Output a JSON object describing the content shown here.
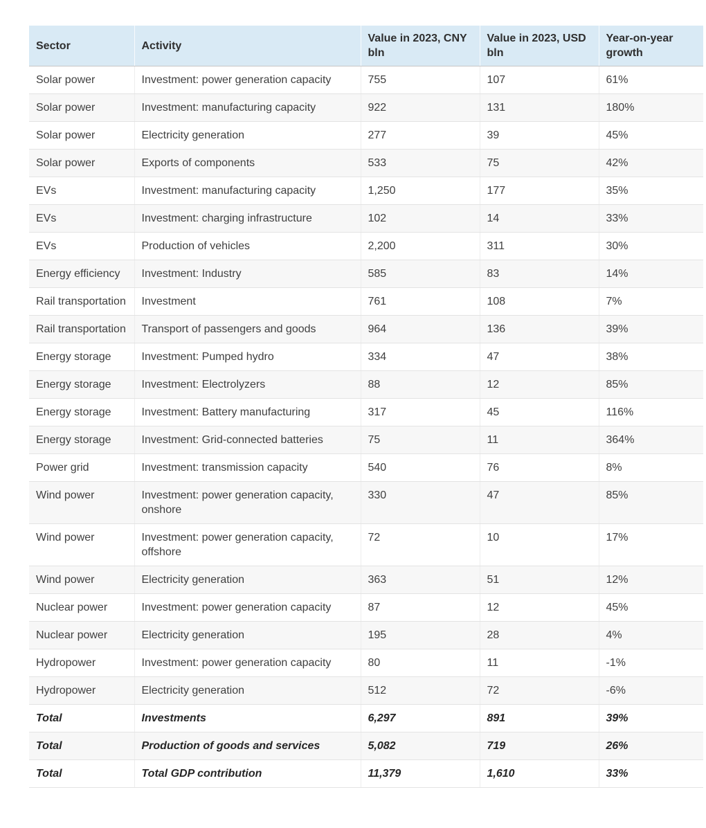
{
  "chart_data": {
    "type": "table",
    "columns": [
      "Sector",
      "Activity",
      "Value in 2023, CNY bln",
      "Value in 2023, USD bln",
      "Year-on-year growth"
    ],
    "rows": [
      {
        "sector": "Solar power",
        "activity": "Investment: power generation capacity",
        "value_cny_bln": "755",
        "value_usd_bln": "107",
        "yoy_growth": "61%",
        "is_total": false
      },
      {
        "sector": "Solar power",
        "activity": "Investment: manufacturing capacity",
        "value_cny_bln": "922",
        "value_usd_bln": "131",
        "yoy_growth": "180%",
        "is_total": false
      },
      {
        "sector": "Solar power",
        "activity": "Electricity generation",
        "value_cny_bln": "277",
        "value_usd_bln": "39",
        "yoy_growth": "45%",
        "is_total": false
      },
      {
        "sector": "Solar power",
        "activity": "Exports of components",
        "value_cny_bln": "533",
        "value_usd_bln": "75",
        "yoy_growth": "42%",
        "is_total": false
      },
      {
        "sector": "EVs",
        "activity": "Investment: manufacturing capacity",
        "value_cny_bln": "1,250",
        "value_usd_bln": "177",
        "yoy_growth": "35%",
        "is_total": false
      },
      {
        "sector": "EVs",
        "activity": "Investment: charging infrastructure",
        "value_cny_bln": "102",
        "value_usd_bln": "14",
        "yoy_growth": "33%",
        "is_total": false
      },
      {
        "sector": "EVs",
        "activity": "Production of vehicles",
        "value_cny_bln": "2,200",
        "value_usd_bln": "311",
        "yoy_growth": "30%",
        "is_total": false
      },
      {
        "sector": "Energy efficiency",
        "activity": "Investment: Industry",
        "value_cny_bln": "585",
        "value_usd_bln": "83",
        "yoy_growth": "14%",
        "is_total": false
      },
      {
        "sector": "Rail transportation",
        "activity": "Investment",
        "value_cny_bln": "761",
        "value_usd_bln": "108",
        "yoy_growth": "7%",
        "is_total": false
      },
      {
        "sector": "Rail transportation",
        "activity": "Transport of passengers and goods",
        "value_cny_bln": "964",
        "value_usd_bln": "136",
        "yoy_growth": "39%",
        "is_total": false
      },
      {
        "sector": "Energy storage",
        "activity": "Investment: Pumped hydro",
        "value_cny_bln": "334",
        "value_usd_bln": "47",
        "yoy_growth": "38%",
        "is_total": false
      },
      {
        "sector": "Energy storage",
        "activity": "Investment: Electrolyzers",
        "value_cny_bln": "88",
        "value_usd_bln": "12",
        "yoy_growth": "85%",
        "is_total": false
      },
      {
        "sector": "Energy storage",
        "activity": "Investment: Battery manufacturing",
        "value_cny_bln": "317",
        "value_usd_bln": "45",
        "yoy_growth": "116%",
        "is_total": false
      },
      {
        "sector": "Energy storage",
        "activity": "Investment: Grid-connected batteries",
        "value_cny_bln": "75",
        "value_usd_bln": "11",
        "yoy_growth": "364%",
        "is_total": false
      },
      {
        "sector": "Power grid",
        "activity": "Investment: transmission capacity",
        "value_cny_bln": "540",
        "value_usd_bln": "76",
        "yoy_growth": "8%",
        "is_total": false
      },
      {
        "sector": "Wind power",
        "activity": "Investment: power generation capacity, onshore",
        "value_cny_bln": "330",
        "value_usd_bln": "47",
        "yoy_growth": "85%",
        "is_total": false
      },
      {
        "sector": "Wind power",
        "activity": "Investment: power generation capacity, offshore",
        "value_cny_bln": "72",
        "value_usd_bln": "10",
        "yoy_growth": "17%",
        "is_total": false
      },
      {
        "sector": "Wind power",
        "activity": "Electricity generation",
        "value_cny_bln": "363",
        "value_usd_bln": "51",
        "yoy_growth": "12%",
        "is_total": false
      },
      {
        "sector": "Nuclear power",
        "activity": "Investment: power generation capacity",
        "value_cny_bln": "87",
        "value_usd_bln": "12",
        "yoy_growth": "45%",
        "is_total": false
      },
      {
        "sector": "Nuclear power",
        "activity": "Electricity generation",
        "value_cny_bln": "195",
        "value_usd_bln": "28",
        "yoy_growth": "4%",
        "is_total": false
      },
      {
        "sector": "Hydropower",
        "activity": "Investment: power generation capacity",
        "value_cny_bln": "80",
        "value_usd_bln": "11",
        "yoy_growth": "-1%",
        "is_total": false
      },
      {
        "sector": "Hydropower",
        "activity": "Electricity generation",
        "value_cny_bln": "512",
        "value_usd_bln": "72",
        "yoy_growth": "-6%",
        "is_total": false
      },
      {
        "sector": "Total",
        "activity": "Investments",
        "value_cny_bln": "6,297",
        "value_usd_bln": "891",
        "yoy_growth": "39%",
        "is_total": true
      },
      {
        "sector": "Total",
        "activity": "Production of goods and services",
        "value_cny_bln": "5,082",
        "value_usd_bln": "719",
        "yoy_growth": "26%",
        "is_total": true
      },
      {
        "sector": "Total",
        "activity": "Total GDP contribution",
        "value_cny_bln": "11,379",
        "value_usd_bln": "1,610",
        "yoy_growth": "33%",
        "is_total": true
      }
    ]
  },
  "style": {
    "header_bg": "#d9eaf5",
    "header_text": "#2f2f2f",
    "header_border": "#c6c6c6",
    "row_alt_bg": "#f7f7f7",
    "row_border": "#e3e3e3",
    "text_color": "#3f3f3f",
    "total_text": "#262626"
  }
}
